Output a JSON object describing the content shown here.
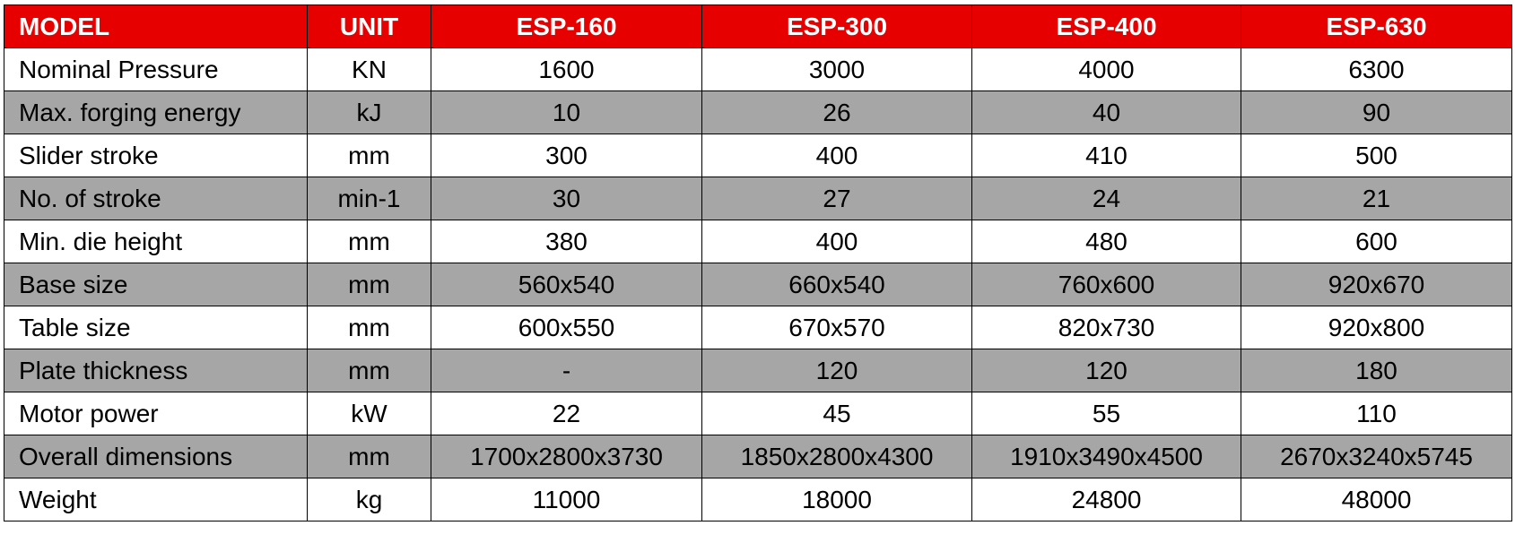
{
  "table": {
    "header": [
      "MODEL",
      "UNIT",
      "ESP-160",
      "ESP-300",
      "ESP-400",
      "ESP-630"
    ],
    "rows": [
      [
        "Nominal Pressure",
        "KN",
        "1600",
        "3000",
        "4000",
        "6300"
      ],
      [
        "Max. forging energy",
        "kJ",
        "10",
        "26",
        "40",
        "90"
      ],
      [
        "Slider stroke",
        "mm",
        "300",
        "400",
        "410",
        "500"
      ],
      [
        "No. of stroke",
        "min-1",
        "30",
        "27",
        "24",
        "21"
      ],
      [
        "Min. die height",
        "mm",
        "380",
        "400",
        "480",
        "600"
      ],
      [
        "Base size",
        "mm",
        "560x540",
        "660x540",
        "760x600",
        "920x670"
      ],
      [
        "Table size",
        "mm",
        "600x550",
        "670x570",
        "820x730",
        "920x800"
      ],
      [
        "Plate thickness",
        "mm",
        "-",
        "120",
        "120",
        "180"
      ],
      [
        "Motor power",
        "kW",
        "22",
        "45",
        "55",
        "110"
      ],
      [
        "Overall dimensions",
        "mm",
        "1700x2800x3730",
        "1850x2800x4300",
        "1910x3490x4500",
        "2670x3240x5745"
      ],
      [
        "Weight",
        "kg",
        "11000",
        "18000",
        "24800",
        "48000"
      ]
    ]
  }
}
